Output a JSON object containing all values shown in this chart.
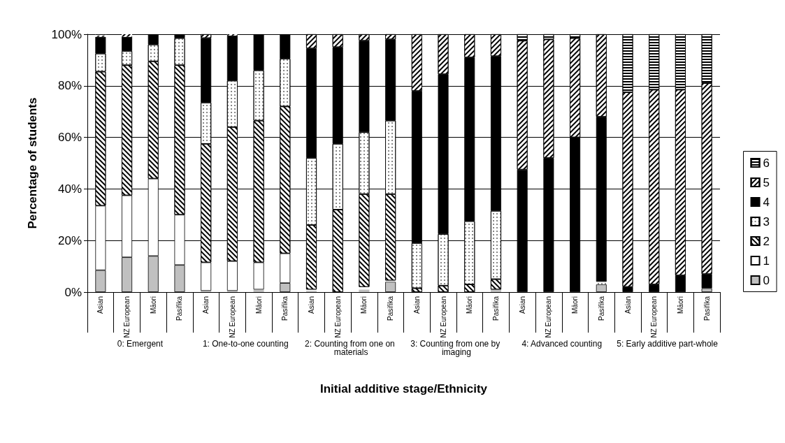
{
  "chart_data": {
    "type": "bar",
    "stacked": true,
    "xlabel": "Initial additive stage/Ethnicity",
    "ylabel": "Percentage of students",
    "categories": [
      "Asian",
      "NZ European",
      "Māori",
      "Pasifika",
      "Asian",
      "NZ European",
      "Māori",
      "Pasifika",
      "Asian",
      "NZ European",
      "Māori",
      "Pasifika",
      "Asian",
      "NZ European",
      "Māori",
      "Pasifika",
      "Asian",
      "NZ European",
      "Māori",
      "Pasifika",
      "Asian",
      "NZ European",
      "Māori",
      "Pasifika"
    ],
    "annotations": [
      "0: Emergent",
      "1: One-to-one counting",
      "2: Counting from one on materials",
      "3: Counting from one by imaging",
      "4: Advanced counting",
      "5: Early additive part-whole"
    ],
    "ylim": [
      0,
      100
    ],
    "yticks": [
      {
        "value": 0,
        "label": "0%"
      },
      {
        "value": 20,
        "label": "20%"
      },
      {
        "value": 40,
        "label": "40%"
      },
      {
        "value": 60,
        "label": "60%"
      },
      {
        "value": 80,
        "label": "80%"
      },
      {
        "value": 100,
        "label": "100%"
      }
    ],
    "grid": "y",
    "legend": "right",
    "series": [
      {
        "name": "0",
        "color": "#c0c0c0",
        "values": [
          8.5,
          13.5,
          14,
          10.5,
          0.5,
          0.5,
          1,
          3.5,
          0.5,
          0,
          1,
          4,
          0,
          0,
          0,
          1,
          0,
          0,
          0,
          3,
          0,
          0,
          0,
          1.5
        ]
      },
      {
        "name": "1",
        "color": "#ffffff",
        "values": [
          25,
          24,
          30,
          19.5,
          11,
          11.5,
          10.5,
          11.5,
          0.5,
          0,
          1,
          0.5,
          0,
          0,
          0,
          0,
          0,
          0,
          0,
          0,
          0,
          0,
          0,
          0
        ]
      },
      {
        "name": "2",
        "color": "#ffffff",
        "values": [
          52,
          50.5,
          45.5,
          58,
          46,
          52,
          55,
          57,
          25,
          32,
          36,
          33.5,
          1.5,
          2.5,
          3,
          4,
          0,
          0,
          0,
          0,
          0,
          0,
          0,
          0
        ]
      },
      {
        "name": "3",
        "color": "#ffffff",
        "values": [
          7,
          5.5,
          6.5,
          10.5,
          16,
          18,
          19.5,
          18.5,
          26,
          25.5,
          24,
          28.5,
          17.5,
          20,
          24.5,
          26.5,
          0,
          0,
          0,
          1,
          0,
          0,
          0,
          0
        ]
      },
      {
        "name": "4",
        "color": "#000000",
        "values": [
          6.5,
          5.5,
          4,
          1.5,
          25,
          17.5,
          14,
          9.5,
          42.5,
          37.5,
          35.5,
          31.5,
          59,
          62,
          63.5,
          60,
          47.5,
          52,
          60,
          64,
          2,
          3,
          6.5,
          5.5
        ]
      },
      {
        "name": "5",
        "color": "#ffffff",
        "values": [
          0.5,
          1,
          0,
          0,
          1.5,
          0.5,
          0,
          0,
          5.5,
          5,
          2.5,
          2,
          22,
          15.5,
          9,
          8.5,
          50,
          46,
          38.5,
          32,
          75.5,
          75.5,
          72,
          74
        ]
      },
      {
        "name": "6",
        "color": "#ffffff",
        "values": [
          0.5,
          0,
          0,
          0,
          0,
          0,
          0,
          0,
          0,
          0,
          0,
          0,
          0,
          0,
          0,
          0,
          2.5,
          2,
          1.5,
          0,
          22.5,
          21.5,
          21.5,
          19
        ]
      }
    ]
  }
}
